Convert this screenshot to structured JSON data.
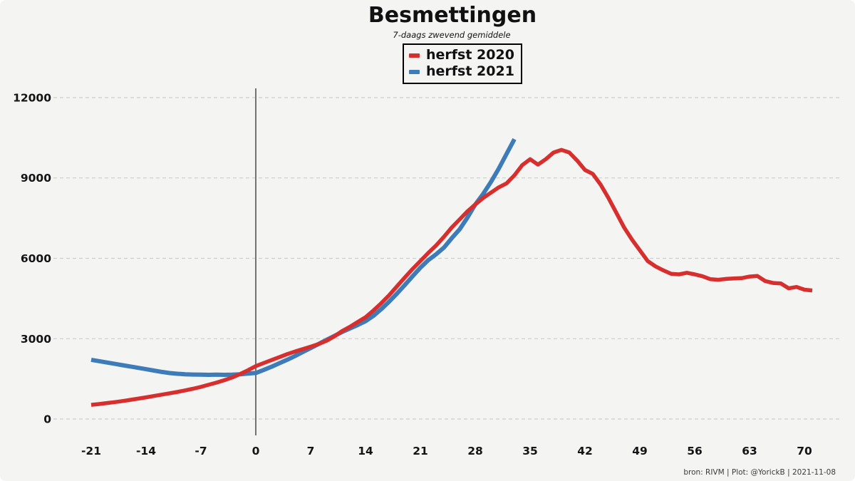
{
  "title": "Besmettingen",
  "subtitle": "7-daags zwevend gemiddele",
  "footer": "bron: RIVM  | Plot: @YorickB |  2021-11-08",
  "colors": {
    "background": "#f4f4f3",
    "gridline": "#cdcdcd",
    "zero_line": "#737373",
    "text": "#111111",
    "herfst_2020": "#d62f2e",
    "herfst_2021": "#3d7cb8"
  },
  "legend": {
    "items": [
      {
        "label": "herfst 2020",
        "color": "#d62f2e"
      },
      {
        "label": "herfst 2021",
        "color": "#3d7cb8"
      }
    ]
  },
  "chart_data": {
    "type": "line",
    "title": "Besmettingen",
    "subtitle": "7-daags zwevend gemiddele",
    "xlabel": "",
    "ylabel": "",
    "x_ticks": [
      -21,
      -14,
      -7,
      0,
      7,
      14,
      21,
      28,
      35,
      42,
      49,
      56,
      63,
      70
    ],
    "y_ticks": [
      0,
      3000,
      6000,
      9000,
      12000
    ],
    "xlim": [
      -25,
      75
    ],
    "ylim": [
      0,
      12000
    ],
    "grid": "horizontal-dashed",
    "vline_x": 0,
    "legend_position": "top-center",
    "series": [
      {
        "name": "herfst 2020",
        "color": "#d62f2e",
        "stroke_width": 5.5,
        "x_start": -21,
        "x_step": 1,
        "values": [
          530,
          560,
          595,
          630,
          670,
          715,
          760,
          810,
          860,
          910,
          960,
          1010,
          1070,
          1130,
          1200,
          1280,
          1360,
          1450,
          1550,
          1680,
          1820,
          1975,
          2090,
          2200,
          2310,
          2420,
          2520,
          2610,
          2700,
          2800,
          2920,
          3080,
          3280,
          3440,
          3620,
          3800,
          4050,
          4320,
          4620,
          4950,
          5280,
          5600,
          5900,
          6200,
          6480,
          6800,
          7150,
          7450,
          7750,
          8010,
          8250,
          8450,
          8650,
          8800,
          9100,
          9480,
          9700,
          9500,
          9700,
          9950,
          10050,
          9950,
          9650,
          9300,
          9150,
          8750,
          8250,
          7700,
          7150,
          6700,
          6300,
          5900,
          5700,
          5550,
          5420,
          5400,
          5460,
          5400,
          5330,
          5220,
          5200,
          5230,
          5250,
          5260,
          5320,
          5340,
          5150,
          5080,
          5060,
          4880,
          4930,
          4830,
          4800
        ]
      },
      {
        "name": "herfst 2021",
        "color": "#3d7cb8",
        "stroke_width": 6,
        "x_start": -21,
        "x_step": 1,
        "values": [
          2210,
          2160,
          2110,
          2060,
          2010,
          1960,
          1910,
          1860,
          1810,
          1760,
          1715,
          1690,
          1670,
          1660,
          1655,
          1650,
          1655,
          1650,
          1655,
          1670,
          1695,
          1720,
          1830,
          1950,
          2080,
          2210,
          2350,
          2500,
          2650,
          2800,
          2950,
          3100,
          3250,
          3380,
          3510,
          3650,
          3850,
          4100,
          4380,
          4680,
          5000,
          5330,
          5650,
          5930,
          6150,
          6400,
          6750,
          7080,
          7520,
          8010,
          8400,
          8850,
          9350,
          9900,
          10450
        ]
      }
    ]
  }
}
